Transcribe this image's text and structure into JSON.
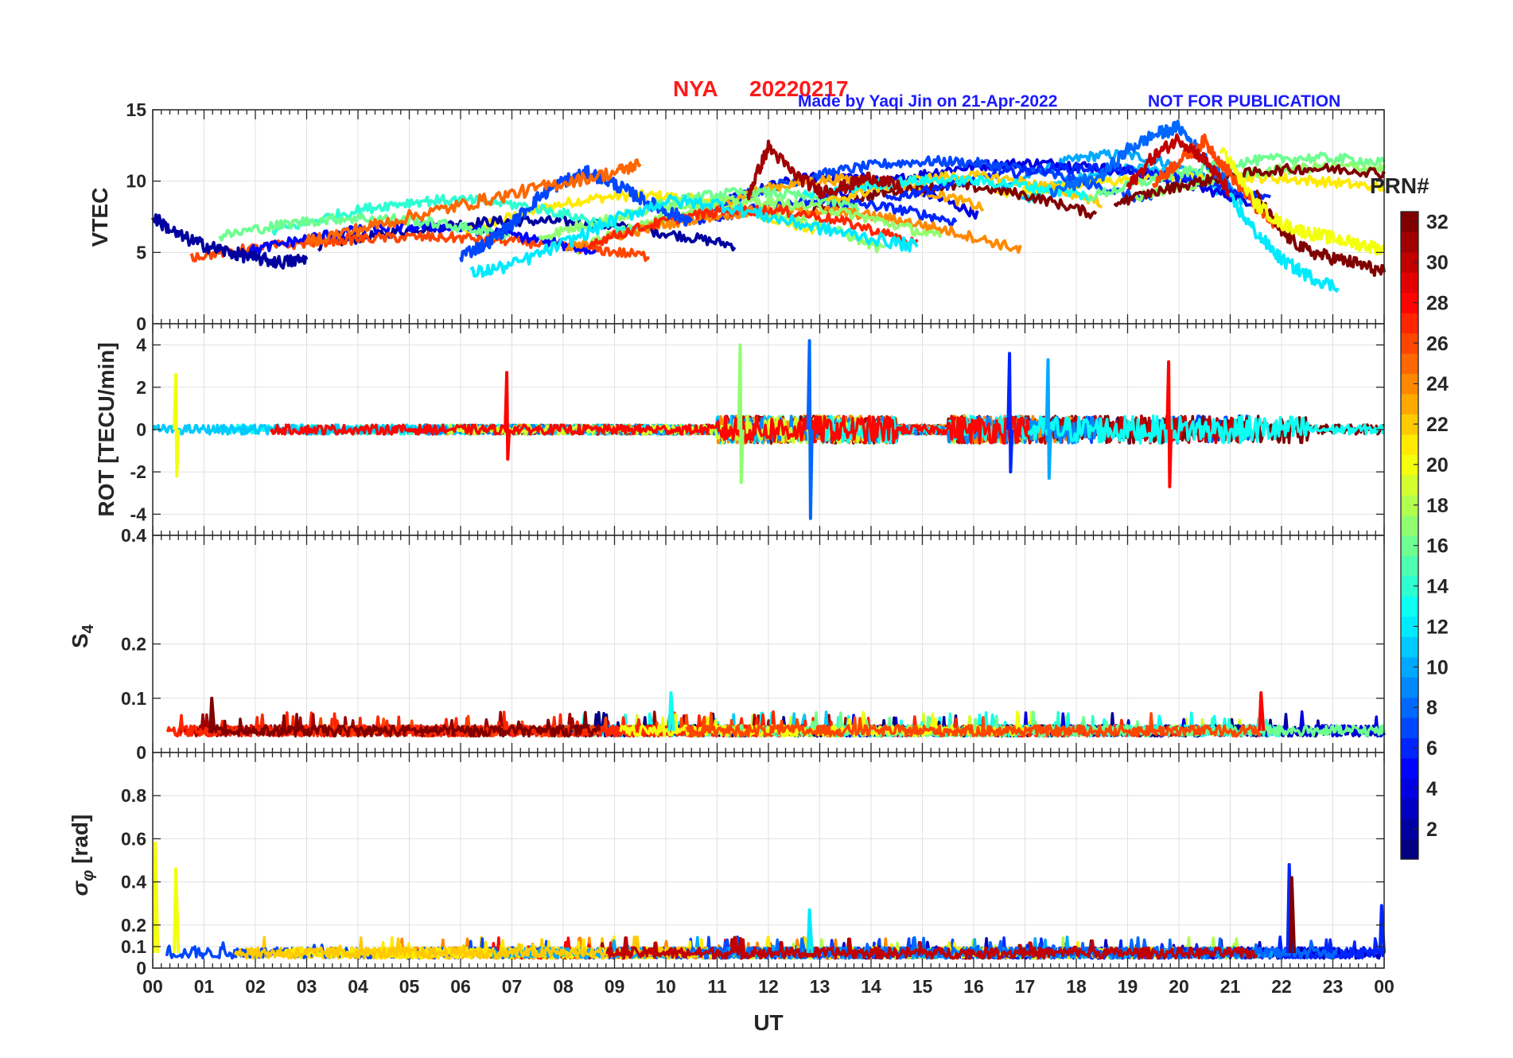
{
  "header": {
    "station": "NYA",
    "date": "20220217",
    "made_by": "Made by Yaqi Jin on 21-Apr-2022",
    "not_for_publication": "NOT FOR PUBLICATION"
  },
  "chart_data": [
    {
      "type": "line",
      "panel": "vtec",
      "ylabel": "VTEC",
      "ylim": [
        0,
        15
      ],
      "yticks": [
        0,
        5,
        10,
        15
      ],
      "grid": true,
      "series": [
        {
          "name": "PRN 2",
          "x": [
            0,
            0.5,
            1,
            1.5,
            2,
            2.5,
            3
          ],
          "values": [
            7.5,
            6.2,
            5.5,
            5.0,
            4.6,
            4.3,
            4.5
          ]
        },
        {
          "name": "PRN 7",
          "x": [
            6,
            6.5,
            7,
            7.5,
            8,
            8.5,
            9,
            9.5,
            10,
            10.5
          ],
          "values": [
            4.8,
            5.6,
            7.0,
            8.8,
            10.0,
            10.6,
            9.8,
            8.8,
            7.9,
            7.2
          ]
        },
        {
          "name": "PRN 12",
          "x": [
            6.2,
            7,
            8,
            9,
            10,
            11,
            12,
            13,
            14,
            14.9
          ],
          "values": [
            3.5,
            4.1,
            5.6,
            7.3,
            8.6,
            8.4,
            7.5,
            6.7,
            6.0,
            5.4
          ]
        },
        {
          "name": "PRN 25",
          "x": [
            3,
            4,
            5,
            6,
            7,
            8,
            9,
            9.5
          ],
          "values": [
            5.8,
            6.6,
            7.5,
            8.3,
            9.1,
            9.9,
            10.6,
            11.2
          ]
        },
        {
          "name": "PRN 31",
          "x": [
            11.6,
            12,
            12.5,
            13,
            13.5,
            14,
            14.6
          ],
          "values": [
            9.0,
            12.4,
            10.5,
            9.3,
            9.6,
            10.3,
            9.5
          ]
        },
        {
          "name": "PRN 8",
          "x": [
            17.5,
            18.5,
            19,
            19.5,
            20,
            20.5,
            21
          ],
          "values": [
            9.2,
            10.4,
            12.2,
            13.2,
            13.8,
            11.6,
            9.5
          ]
        },
        {
          "name": "PRN 26",
          "x": [
            19.5,
            20,
            20.5,
            21,
            21.5,
            22
          ],
          "values": [
            9.8,
            11.4,
            12.8,
            10.5,
            8.2,
            6.5
          ]
        },
        {
          "name": "PRN 30",
          "x": [
            19,
            19.5,
            20,
            20.5,
            21
          ],
          "values": [
            9.5,
            11.7,
            13.0,
            11.5,
            9.2
          ]
        },
        {
          "name": "PRN 32",
          "x": [
            21.5,
            22,
            22.5,
            23,
            23.5,
            24
          ],
          "values": [
            9.0,
            6.4,
            5.1,
            4.6,
            4.2,
            3.6
          ]
        },
        {
          "name": "PRN 12b",
          "x": [
            21,
            21.5,
            22,
            22.5,
            23.1
          ],
          "values": [
            8.8,
            6.4,
            4.5,
            3.4,
            2.5
          ]
        },
        {
          "name": "PRN 20",
          "x": [
            20.8,
            21.5,
            22,
            22.5,
            23,
            23.5,
            24
          ],
          "values": [
            12.5,
            8.4,
            7.0,
            6.4,
            6.0,
            5.6,
            5.2
          ]
        }
      ]
    },
    {
      "type": "line",
      "panel": "rot",
      "ylabel": "ROT [TECU/min]",
      "ylim": [
        -5,
        5
      ],
      "yticks": [
        -4,
        -2,
        0,
        2,
        4
      ],
      "grid": true,
      "spikes": [
        {
          "x": 0.45,
          "values": [
            2.6,
            -2.2
          ],
          "prn": 20
        },
        {
          "x": 6.9,
          "values": [
            2.7,
            -1.4
          ],
          "prn": 28
        },
        {
          "x": 11.45,
          "values": [
            4.0,
            -2.5
          ],
          "prn": 17
        },
        {
          "x": 12.8,
          "values": [
            4.2,
            -4.2
          ],
          "prn": 8
        },
        {
          "x": 16.7,
          "values": [
            3.6,
            -2.0
          ],
          "prn": 6
        },
        {
          "x": 17.45,
          "values": [
            3.3,
            -2.3
          ],
          "prn": 10
        },
        {
          "x": 19.8,
          "values": [
            3.2,
            -2.7
          ],
          "prn": 28
        }
      ]
    },
    {
      "type": "line",
      "panel": "s4",
      "ylabel": "S_4",
      "ylim": [
        0,
        0.4
      ],
      "yticks": [
        0,
        0.1,
        0.2,
        0.4
      ],
      "grid": true,
      "baseline": 0.04,
      "spikes": [
        {
          "x": 1.15,
          "values": [
            0.1
          ],
          "prn": 32
        },
        {
          "x": 10.1,
          "values": [
            0.11
          ],
          "prn": 13
        },
        {
          "x": 21.6,
          "values": [
            0.11
          ],
          "prn": 28
        }
      ]
    },
    {
      "type": "line",
      "panel": "sigma",
      "ylabel": "σ_φ [rad]",
      "ylim": [
        0,
        1
      ],
      "yticks": [
        0,
        0.1,
        0.2,
        0.4,
        0.6,
        0.8
      ],
      "grid": true,
      "baseline": 0.07,
      "spikes": [
        {
          "x": 0.05,
          "values": [
            0.58
          ],
          "prn": 20
        },
        {
          "x": 0.45,
          "values": [
            0.46
          ],
          "prn": 20
        },
        {
          "x": 12.8,
          "values": [
            0.27
          ],
          "prn": 12
        },
        {
          "x": 22.15,
          "values": [
            0.48
          ],
          "prn": 6
        },
        {
          "x": 22.2,
          "values": [
            0.42
          ],
          "prn": 32
        },
        {
          "x": 23.95,
          "values": [
            0.29
          ],
          "prn": 6
        }
      ]
    }
  ],
  "x_axis": {
    "label": "UT",
    "xlim": [
      0,
      24
    ],
    "ticks": [
      "00",
      "01",
      "02",
      "03",
      "04",
      "05",
      "06",
      "07",
      "08",
      "09",
      "10",
      "11",
      "12",
      "13",
      "14",
      "15",
      "16",
      "17",
      "18",
      "19",
      "20",
      "21",
      "22",
      "23",
      "00"
    ]
  },
  "colorbar": {
    "title": "PRN#",
    "range": [
      1,
      32
    ],
    "ticks": [
      2,
      4,
      6,
      8,
      10,
      12,
      14,
      16,
      18,
      20,
      22,
      24,
      26,
      28,
      30,
      32
    ]
  }
}
